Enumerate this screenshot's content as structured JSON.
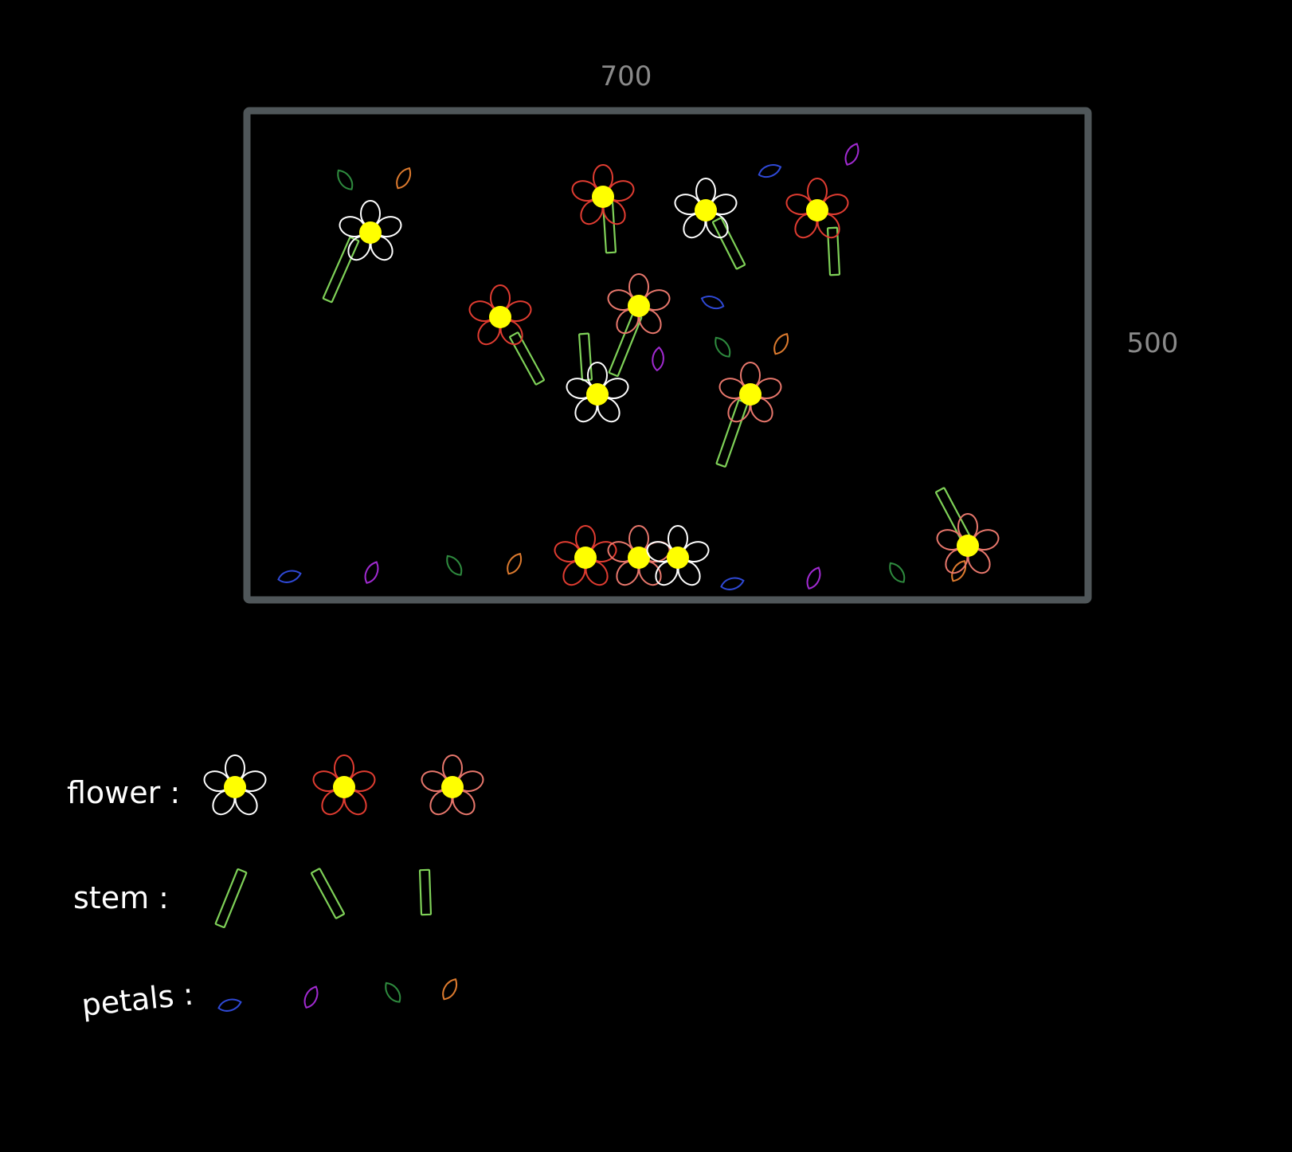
{
  "dimensions": {
    "width_label": "700",
    "height_label": "500"
  },
  "legend": {
    "flower_label": "flower :",
    "stem_label": "stem :",
    "petals_label": "petals :"
  },
  "colors": {
    "background": "#000000",
    "frame": "#4f5659",
    "flower_center": "#ffff00",
    "flower_white": "#ffffff",
    "flower_red": "#e03c31",
    "flower_salmon": "#e8776c",
    "stem": "#7fd158",
    "petal_blue": "#2f49d6",
    "petal_purple": "#a12ad1",
    "petal_green": "#2e8a3e",
    "petal_orange": "#dc7a2e",
    "dim_text": "#8a8a8a",
    "legend_text": "#ffffff"
  },
  "legend_items": {
    "flowers": [
      "white",
      "red",
      "salmon"
    ],
    "stems": [
      "slant-left",
      "slant-right",
      "straight"
    ],
    "petals": [
      "blue",
      "purple",
      "green",
      "orange"
    ]
  }
}
